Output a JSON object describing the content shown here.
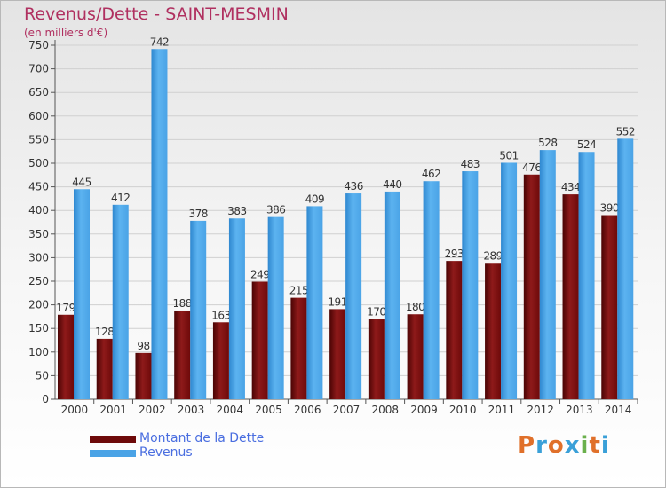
{
  "title": "Revenus/Dette - SAINT-MESMIN",
  "subtitle": "(en milliers d'€)",
  "logo": {
    "letters": [
      "P",
      "r",
      "o",
      "x",
      "i",
      "t",
      "i"
    ],
    "colors": [
      "#e0702a",
      "#3aa0d8",
      "#e0702a",
      "#3aa0d8",
      "#6ab04c",
      "#e0702a",
      "#3aa0d8"
    ]
  },
  "colors": {
    "dette": "#6e0a0a",
    "revenus": "#4aa3e6"
  },
  "chart_data": {
    "type": "bar",
    "title": "Revenus/Dette - SAINT-MESMIN",
    "ylabel": "(en milliers d'€)",
    "xlabel": "",
    "categories": [
      "2000",
      "2001",
      "2002",
      "2003",
      "2004",
      "2005",
      "2006",
      "2007",
      "2008",
      "2009",
      "2010",
      "2011",
      "2012",
      "2013",
      "2014"
    ],
    "series": [
      {
        "name": "Montant de la Dette",
        "values": [
          179,
          128,
          98,
          188,
          163,
          249,
          215,
          191,
          170,
          180,
          293,
          289,
          476,
          434,
          390
        ],
        "color": "#6e0a0a"
      },
      {
        "name": "Revenus",
        "values": [
          445,
          412,
          742,
          378,
          383,
          386,
          409,
          436,
          440,
          462,
          483,
          501,
          528,
          524,
          552
        ],
        "color": "#4aa3e6"
      }
    ],
    "ylim": [
      0,
      750
    ],
    "yticks": [
      0,
      50,
      100,
      150,
      200,
      250,
      300,
      350,
      400,
      450,
      500,
      550,
      600,
      650,
      700,
      750
    ],
    "grid": true,
    "legend": "bottom-left"
  }
}
